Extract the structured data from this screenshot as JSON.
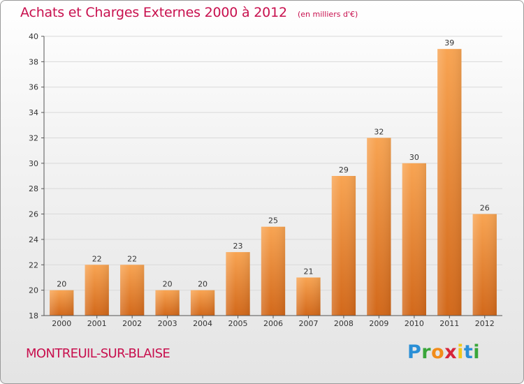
{
  "header": {
    "title": "Achats et Charges Externes 2000 à 2012",
    "subtitle": "(en milliers d'€)"
  },
  "footer": {
    "location": "MONTREUIL-SUR-BLAISE",
    "logo_text": "Proxiti"
  },
  "colors": {
    "accent": "#c8104e",
    "bar_light": "#f7a04e",
    "bar_dark": "#d6701c"
  },
  "chart_data": {
    "type": "bar",
    "title": "Achats et Charges Externes 2000 à 2012",
    "subtitle": "(en milliers d'€)",
    "xlabel": "",
    "ylabel": "",
    "categories": [
      "2000",
      "2001",
      "2002",
      "2003",
      "2004",
      "2005",
      "2006",
      "2007",
      "2008",
      "2009",
      "2010",
      "2011",
      "2012"
    ],
    "values": [
      20,
      22,
      22,
      20,
      20,
      23,
      25,
      21,
      29,
      32,
      30,
      39,
      26
    ],
    "ylim": [
      18,
      40
    ],
    "yticks": [
      18,
      20,
      22,
      24,
      26,
      28,
      30,
      32,
      34,
      36,
      38,
      40
    ],
    "grid": true
  }
}
